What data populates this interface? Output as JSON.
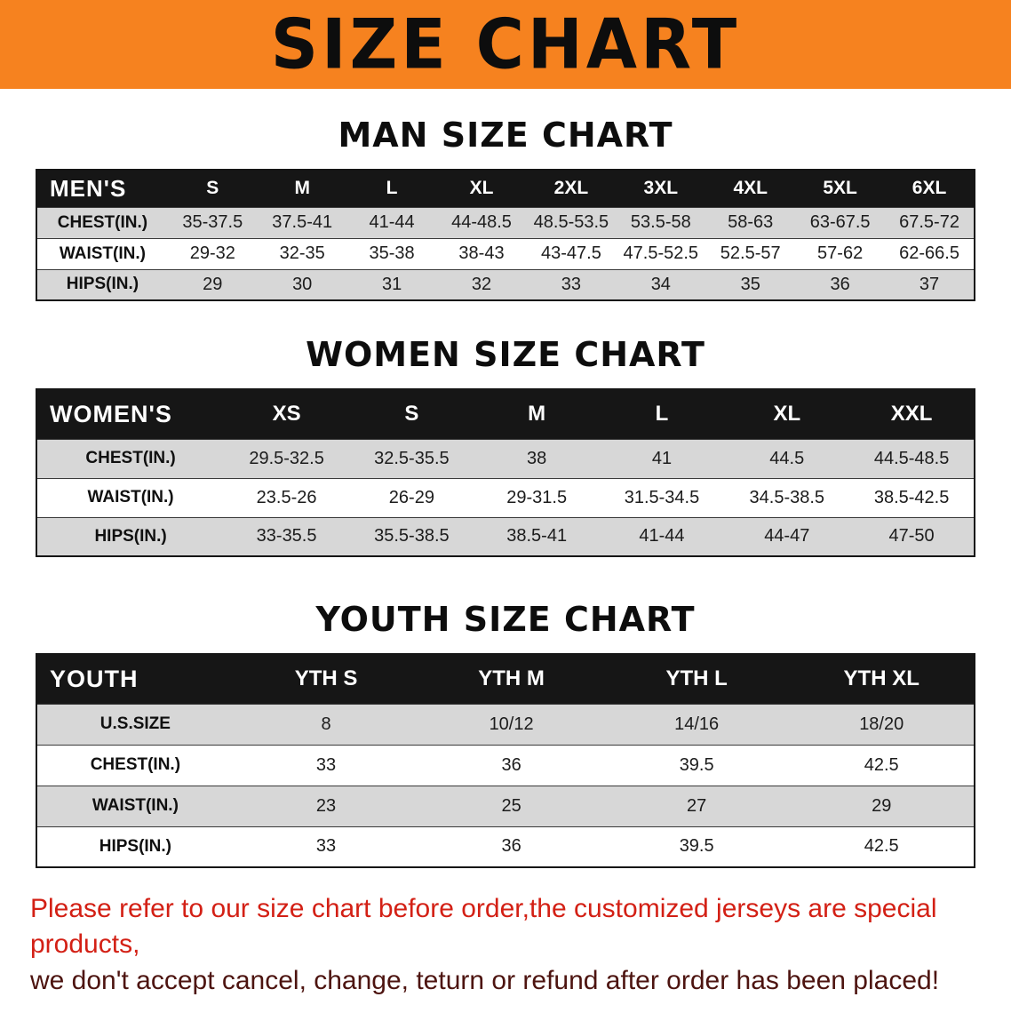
{
  "banner": {
    "title": "SIZE CHART"
  },
  "men": {
    "heading": "MAN SIZE CHART",
    "table": {
      "header": [
        "MEN'S",
        "S",
        "M",
        "L",
        "XL",
        "2XL",
        "3XL",
        "4XL",
        "5XL",
        "6XL"
      ],
      "rows": [
        [
          "CHEST(IN.)",
          "35-37.5",
          "37.5-41",
          "41-44",
          "44-48.5",
          "48.5-53.5",
          "53.5-58",
          "58-63",
          "63-67.5",
          "67.5-72"
        ],
        [
          "WAIST(IN.)",
          "29-32",
          "32-35",
          "35-38",
          "38-43",
          "43-47.5",
          "47.5-52.5",
          "52.5-57",
          "57-62",
          "62-66.5"
        ],
        [
          "HIPS(IN.)",
          "29",
          "30",
          "31",
          "32",
          "33",
          "34",
          "35",
          "36",
          "37"
        ]
      ]
    }
  },
  "women": {
    "heading": "WOMEN SIZE CHART",
    "table": {
      "header": [
        "WOMEN'S",
        "XS",
        "S",
        "M",
        "L",
        "XL",
        "XXL"
      ],
      "rows": [
        [
          "CHEST(IN.)",
          "29.5-32.5",
          "32.5-35.5",
          "38",
          "41",
          "44.5",
          "44.5-48.5"
        ],
        [
          "WAIST(IN.)",
          "23.5-26",
          "26-29",
          "29-31.5",
          "31.5-34.5",
          "34.5-38.5",
          "38.5-42.5"
        ],
        [
          "HIPS(IN.)",
          "33-35.5",
          "35.5-38.5",
          "38.5-41",
          "41-44",
          "44-47",
          "47-50"
        ]
      ]
    }
  },
  "youth": {
    "heading": "YOUTH SIZE CHART",
    "table": {
      "header": [
        "YOUTH",
        "YTH S",
        "YTH M",
        "YTH L",
        "YTH XL"
      ],
      "rows": [
        [
          "U.S.SIZE",
          "8",
          "10/12",
          "14/16",
          "18/20"
        ],
        [
          "CHEST(IN.)",
          "33",
          "36",
          "39.5",
          "42.5"
        ],
        [
          "WAIST(IN.)",
          "23",
          "25",
          "27",
          "29"
        ],
        [
          "HIPS(IN.)",
          "33",
          "36",
          "39.5",
          "42.5"
        ]
      ]
    }
  },
  "disclaimer": {
    "line1": "Please refer to our size chart before order,the customized jerseys are special products,",
    "line2": "we don't accept cancel, change, teturn or refund after order has been placed!"
  },
  "colors": {
    "banner_bg": "#f6821f",
    "header_bg": "#161616",
    "stripe_bg": "#d7d7d7",
    "disclaimer_red": "#d32015",
    "disclaimer_dark": "#4d1410"
  }
}
